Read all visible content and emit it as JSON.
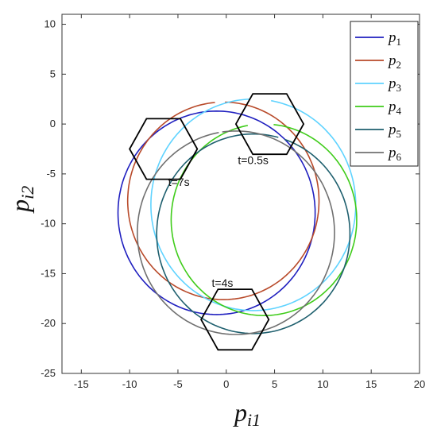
{
  "chart_data": {
    "type": "line",
    "title": "",
    "xlabel": "p_i1",
    "ylabel": "p_i2",
    "xlim": [
      -17,
      20
    ],
    "ylim": [
      -25,
      11
    ],
    "xticks": [
      -15,
      -10,
      -5,
      0,
      5,
      10,
      15,
      20
    ],
    "yticks": [
      10,
      5,
      0,
      -5,
      -10,
      -15,
      -20,
      -25
    ],
    "grid": false,
    "legend_position": "top-right",
    "series": [
      {
        "name": "p_1",
        "label_base": "p",
        "label_sub": "1",
        "color": "#1f1fbf",
        "circle": {
          "cx": -1.0,
          "cy": -8.9,
          "r": 10.2,
          "start_deg": 80,
          "end_deg": 440
        }
      },
      {
        "name": "p_2",
        "label_base": "p",
        "label_sub": "2",
        "color": "#b84a2a",
        "circle": {
          "cx": -0.3,
          "cy": -7.7,
          "r": 9.9,
          "start_deg": 95,
          "end_deg": 450
        }
      },
      {
        "name": "p_3",
        "label_base": "p",
        "label_sub": "3",
        "color": "#5fd3ff",
        "circle": {
          "cx": 2.8,
          "cy": -8.1,
          "r": 10.6,
          "start_deg": 92,
          "end_deg": 440
        }
      },
      {
        "name": "p_4",
        "label_base": "p",
        "label_sub": "4",
        "color": "#3fcc1a",
        "circle": {
          "cx": 3.9,
          "cy": -9.6,
          "r": 9.6,
          "start_deg": 100,
          "end_deg": 445
        }
      },
      {
        "name": "p_5",
        "label_base": "p",
        "label_sub": "5",
        "color": "#1e5f6e",
        "circle": {
          "cx": 2.8,
          "cy": -11.0,
          "r": 10.0,
          "start_deg": 75,
          "end_deg": 432
        }
      },
      {
        "name": "p_6",
        "label_base": "p",
        "label_sub": "6",
        "color": "#707070",
        "circle": {
          "cx": 1.0,
          "cy": -10.9,
          "r": 10.2,
          "start_deg": 100,
          "end_deg": 458
        }
      }
    ],
    "hexagons": [
      {
        "label": "t=0.5s",
        "cx": 4.5,
        "cy": 0.0,
        "r": 3.5,
        "label_x": 1.2,
        "label_y": -4.0
      },
      {
        "label": "t=7s",
        "cx": -6.5,
        "cy": -2.5,
        "r": 3.5,
        "label_x": -6.0,
        "label_y": -6.2
      },
      {
        "label": "t=4s",
        "cx": 0.9,
        "cy": -19.6,
        "r": 3.5,
        "label_x": -1.5,
        "label_y": -16.3
      }
    ]
  }
}
